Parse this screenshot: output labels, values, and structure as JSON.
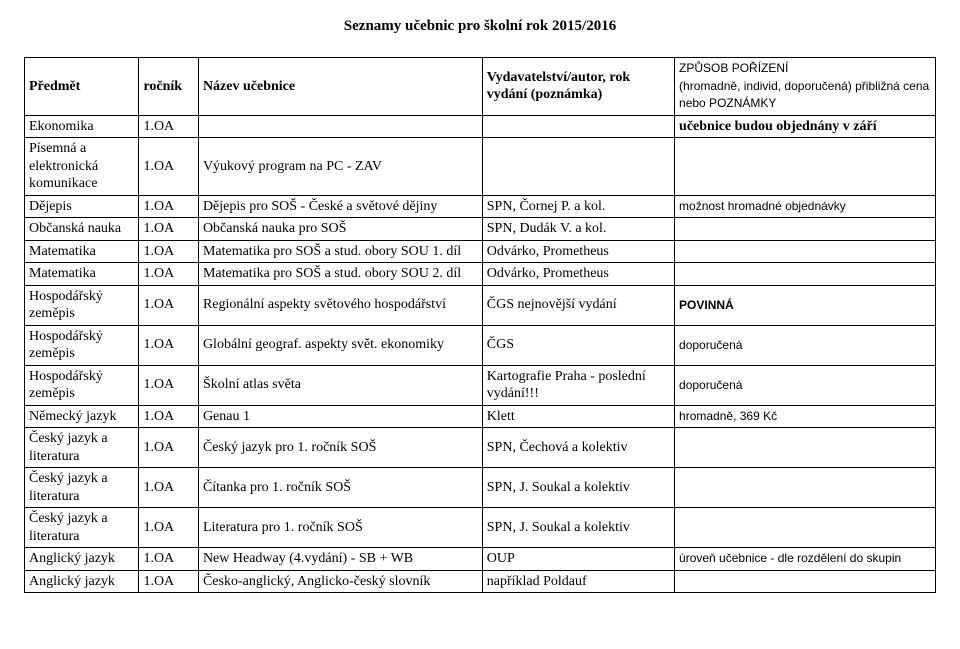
{
  "title": "Seznamy učebnic pro školní rok 2015/2016",
  "headers": {
    "subject": "Předmět",
    "grade": "ročník",
    "book": "Název učebnice",
    "publisher": "Vydavatelství/autor, rok vydání (poznámka)",
    "note_line1": "ZPŮSOB POŘÍZENÍ",
    "note_line2": "(hromadně, individ, doporučená) přibližná cena nebo POZNÁMKY"
  },
  "rows": [
    {
      "subject": "Ekonomika",
      "grade": "1.OA",
      "book": "",
      "publisher": "",
      "note": "učebnice budou objednány v září",
      "note_class": "main-bold"
    },
    {
      "subject": "Písemná a elektronická komunikace",
      "grade": "1.OA",
      "book": "Výukový program na PC - ZAV",
      "publisher": "",
      "note": ""
    },
    {
      "subject": "Dějepis",
      "grade": "1.OA",
      "book": "Dějepis pro SOŠ - České a světové dějiny",
      "publisher": "SPN, Čornej P. a kol.",
      "note": "možnost hromadné objednávky",
      "note_class": "note-font"
    },
    {
      "subject": "Občanská nauka",
      "grade": "1.OA",
      "book": "Občanská nauka pro SOŠ",
      "publisher": "SPN, Dudák V. a kol.",
      "note": ""
    },
    {
      "subject": "Matematika",
      "grade": "1.OA",
      "book": "Matematika pro SOŠ a stud. obory SOU 1. díl",
      "publisher": "Odvárko, Prometheus",
      "note": ""
    },
    {
      "subject": "Matematika",
      "grade": "1.OA",
      "book": "Matematika pro SOŠ a stud. obory SOU 2. díl",
      "publisher": "Odvárko, Prometheus",
      "note": ""
    },
    {
      "subject": "Hospodářský zeměpis",
      "grade": "1.OA",
      "book": "Regionální aspekty světového hospodářství",
      "publisher": "ČGS nejnovější vydání",
      "note": "POVINNÁ",
      "note_class": "note-bold"
    },
    {
      "subject": "Hospodářský zeměpis",
      "grade": "1.OA",
      "book": "Globální geograf. aspekty svět. ekonomiky",
      "publisher": "ČGS",
      "note": "doporučená",
      "note_class": "note-font"
    },
    {
      "subject": "Hospodářský zeměpis",
      "grade": "1.OA",
      "book": "Školní atlas světa",
      "publisher": "Kartografie Praha - poslední vydání!!!",
      "note": "doporučená",
      "note_class": "note-font"
    },
    {
      "subject": "Německý jazyk",
      "grade": "1.OA",
      "book": "Genau 1",
      "publisher": "Klett",
      "note": "hromadně, 369 Kč",
      "note_class": "note-font"
    },
    {
      "subject": "Český jazyk a literatura",
      "grade": "1.OA",
      "book": "Český jazyk pro 1. ročník SOŠ",
      "publisher": "SPN, Čechová a kolektiv",
      "note": ""
    },
    {
      "subject": "Český jazyk a literatura",
      "grade": "1.OA",
      "book": "Čítanka pro 1. ročník SOŠ",
      "publisher": "SPN, J. Soukal a kolektiv",
      "note": ""
    },
    {
      "subject": "Český jazyk a literatura",
      "grade": "1.OA",
      "book": "Literatura pro 1. ročník SOŠ",
      "publisher": "SPN, J. Soukal a kolektiv",
      "note": ""
    },
    {
      "subject": "Anglický jazyk",
      "grade": "1.OA",
      "book": "New Headway (4.vydání) - SB + WB",
      "publisher": "OUP",
      "note": "úroveň učebnice - dle rozdělení do skupin",
      "note_class": "note-font"
    },
    {
      "subject": "Anglický jazyk",
      "grade": "1.OA",
      "book": "Česko-anglický, Anglicko-český slovník",
      "publisher": "například Poldauf",
      "note": ""
    }
  ]
}
